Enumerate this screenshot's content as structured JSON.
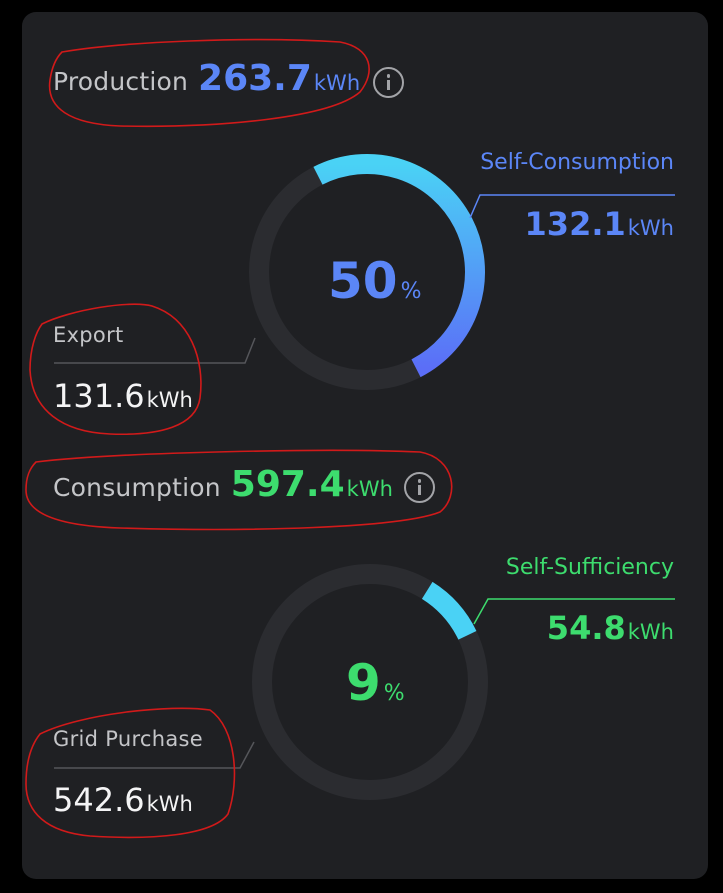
{
  "production": {
    "label": "Production",
    "value": "263.7",
    "unit": "kWh",
    "info_icon": "info-icon"
  },
  "self_consumption": {
    "label": "Self-Consumption",
    "value": "132.1",
    "unit": "kWh",
    "percent_value": "50",
    "percent_unit": "%",
    "fraction": 0.5
  },
  "export": {
    "label": "Export",
    "value": "131.6",
    "unit": "kWh"
  },
  "consumption": {
    "label": "Consumption",
    "value": "597.4",
    "unit": "kWh",
    "info_icon": "info-icon"
  },
  "self_sufficiency": {
    "label": "Self-Sufficiency",
    "value": "54.8",
    "unit": "kWh",
    "percent_value": "9",
    "percent_unit": "%",
    "fraction": 0.09
  },
  "grid_purchase": {
    "label": "Grid Purchase",
    "value": "542.6",
    "unit": "kWh"
  },
  "colors": {
    "background": "#000000",
    "card": "#1f2023",
    "track": "#2b2c30",
    "production_blue": "#5b86f7",
    "cyan": "#4ad2f5",
    "consumption_green": "#3ddc6e",
    "label_gray": "#c4c5c8",
    "annotation_red": "#d11a1a"
  }
}
